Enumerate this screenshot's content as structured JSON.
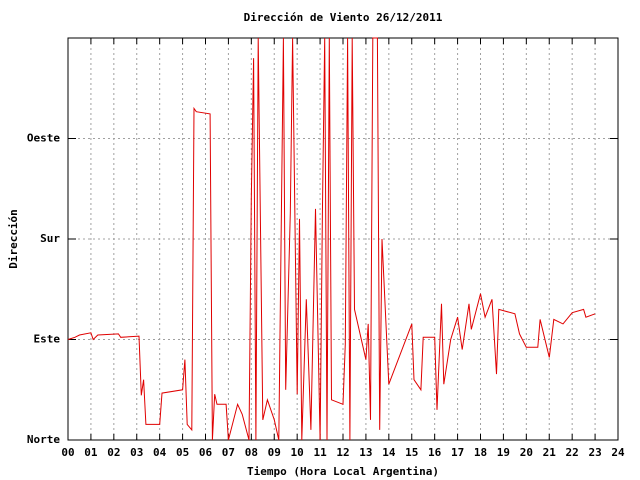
{
  "chart_data": {
    "type": "line",
    "title": "Dirección de Viento 26/12/2011",
    "x_label": "Tiempo (Hora Local Argentina)",
    "y_label": "Dirección",
    "xlim": [
      0,
      24
    ],
    "xticks": [
      {
        "value": 0,
        "label": "00"
      },
      {
        "value": 1,
        "label": "01"
      },
      {
        "value": 2,
        "label": "02"
      },
      {
        "value": 3,
        "label": "03"
      },
      {
        "value": 4,
        "label": "04"
      },
      {
        "value": 5,
        "label": "05"
      },
      {
        "value": 6,
        "label": "06"
      },
      {
        "value": 7,
        "label": "07"
      },
      {
        "value": 8,
        "label": "08"
      },
      {
        "value": 9,
        "label": "09"
      },
      10,
      11,
      12,
      13,
      14,
      15,
      16,
      17,
      18,
      19,
      20,
      21,
      22,
      23,
      24
    ],
    "ylim": [
      0,
      360
    ],
    "yticks": [
      {
        "value": 0,
        "label": "Norte"
      },
      {
        "value": 90,
        "label": "Este"
      },
      {
        "value": 180,
        "label": "Sur"
      },
      {
        "value": 270,
        "label": "Oeste"
      }
    ],
    "grid": true,
    "series": [
      {
        "color": "#e00000",
        "x": [
          0.0,
          0.3,
          0.5,
          1.0,
          1.1,
          1.3,
          2.2,
          2.3,
          3.1,
          3.2,
          3.3,
          3.4,
          4.0,
          4.1,
          5.0,
          5.1,
          5.2,
          5.4,
          5.5,
          5.6,
          6.2,
          6.3,
          6.4,
          6.5,
          6.9,
          7.0,
          7.4,
          7.6,
          7.9,
          8.0,
          8.1,
          8.2,
          8.3,
          8.4,
          8.5,
          8.7,
          9.0,
          9.2,
          9.4,
          9.5,
          9.7,
          9.8,
          10.0,
          10.1,
          10.2,
          10.4,
          10.6,
          10.8,
          11.0,
          11.1,
          11.2,
          11.3,
          11.4,
          11.5,
          12.0,
          12.1,
          12.2,
          12.3,
          12.4,
          12.5,
          13.0,
          13.1,
          13.2,
          13.3,
          13.5,
          13.6,
          13.7,
          14.0,
          15.0,
          15.1,
          15.4,
          15.5,
          16.0,
          16.1,
          16.3,
          16.4,
          16.7,
          17.0,
          17.2,
          17.5,
          17.6,
          18.0,
          18.2,
          18.5,
          18.7,
          18.8,
          19.5,
          19.7,
          20.0,
          20.5,
          20.6,
          21.0,
          21.2,
          21.6,
          22.0,
          22.5,
          22.6,
          23.0
        ],
        "values": [
          90,
          92,
          94,
          96,
          90,
          94,
          95,
          92,
          93,
          40,
          54,
          14,
          14,
          42,
          45,
          72,
          14,
          9,
          297,
          294,
          292,
          0,
          41,
          32,
          32,
          0,
          32,
          23,
          0,
          216,
          342,
          0,
          360,
          189,
          18,
          36,
          18,
          0,
          360,
          45,
          203,
          360,
          41,
          198,
          0,
          126,
          9,
          207,
          0,
          203,
          360,
          0,
          360,
          36,
          32,
          86,
          360,
          0,
          360,
          117,
          72,
          104,
          18,
          360,
          360,
          9,
          180,
          50,
          104,
          54,
          45,
          92,
          92,
          27,
          122,
          50,
          90,
          110,
          81,
          122,
          99,
          131,
          110,
          126,
          59,
          117,
          113,
          95,
          83,
          83,
          108,
          74,
          108,
          104,
          114,
          117,
          110,
          113
        ]
      }
    ]
  }
}
